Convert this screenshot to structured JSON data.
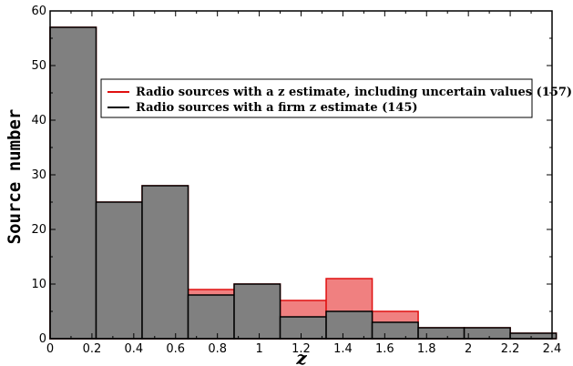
{
  "chart_data": {
    "type": "bar",
    "xlabel": "z",
    "ylabel": "Source number",
    "xlim": [
      0,
      2.4
    ],
    "ylim": [
      0,
      60
    ],
    "x_ticks": [
      0,
      0.2,
      0.4,
      0.6,
      0.8,
      1,
      1.2,
      1.4,
      1.6,
      1.8,
      2,
      2.2,
      2.4
    ],
    "x_tick_labels": [
      "0",
      "0.2",
      "0.4",
      "0.6",
      "0.8",
      "1",
      "1.2",
      "1.4",
      "1.6",
      "1.8",
      "2",
      "2.2",
      "2.4"
    ],
    "y_ticks": [
      0,
      10,
      20,
      30,
      40,
      50,
      60
    ],
    "y_tick_labels": [
      "0",
      "10",
      "20",
      "30",
      "40",
      "50",
      "60"
    ],
    "bin_edges": [
      0,
      0.22,
      0.44,
      0.66,
      0.88,
      1.1,
      1.32,
      1.54,
      1.76,
      1.98,
      2.2,
      2.42
    ],
    "grid": false,
    "legend_position": "upper-center",
    "series": [
      {
        "name": "Radio sources with a z estimate, including uncertain values (157)",
        "color": "#f08080",
        "edge_color": "#e01010",
        "values": [
          57,
          25,
          28,
          9,
          10,
          7,
          11,
          5,
          2,
          2,
          1
        ]
      },
      {
        "name": "Radio sources with a firm z estimate (145)",
        "color": "#808080",
        "edge_color": "#000000",
        "values": [
          57,
          25,
          28,
          8,
          10,
          4,
          5,
          3,
          2,
          2,
          1
        ]
      }
    ]
  }
}
